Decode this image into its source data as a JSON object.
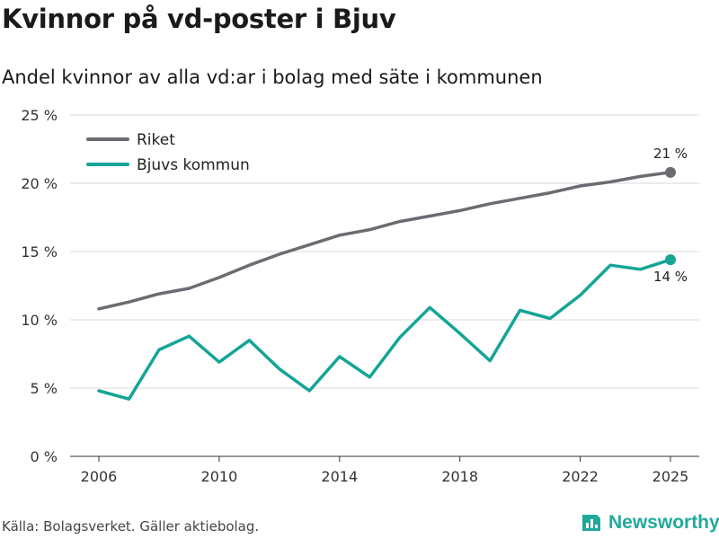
{
  "title": "Kvinnor på vd-poster i Bjuv",
  "subtitle": "Andel kvinnor av alla vd:ar i bolag med säte i kommunen",
  "source": "Källa: Bolagsverket. Gäller aktiebolag.",
  "brand": "Newsworthy",
  "colors": {
    "riket": "#6c6b72",
    "bjuv": "#13a596",
    "grid": "#d9d9d9",
    "brand": "#20a99b"
  },
  "chart_data": {
    "type": "line",
    "x": [
      2006,
      2007,
      2008,
      2009,
      2010,
      2011,
      2012,
      2013,
      2014,
      2015,
      2016,
      2017,
      2018,
      2019,
      2020,
      2021,
      2022,
      2023,
      2024,
      2025
    ],
    "x_ticks": [
      2006,
      2010,
      2014,
      2018,
      2022,
      2025
    ],
    "x_tick_labels": [
      "2006",
      "2010",
      "2014",
      "2018",
      "2022",
      "2025"
    ],
    "ylim": [
      0,
      25
    ],
    "y_ticks": [
      0,
      5,
      10,
      15,
      20,
      25
    ],
    "y_tick_labels": [
      "0 %",
      "5 %",
      "10 %",
      "15 %",
      "20 %",
      "25 %"
    ],
    "grid": true,
    "legend_position": "top-left",
    "series": [
      {
        "name": "Riket",
        "color": "#6c6b72",
        "values": [
          10.8,
          11.3,
          11.9,
          12.3,
          13.1,
          14.0,
          14.8,
          15.5,
          16.2,
          16.6,
          17.2,
          17.6,
          18.0,
          18.5,
          18.9,
          19.3,
          19.8,
          20.1,
          20.5,
          20.8
        ],
        "end_label": "21 %"
      },
      {
        "name": "Bjuvs kommun",
        "color": "#13a596",
        "values": [
          4.8,
          4.2,
          7.8,
          8.8,
          6.9,
          8.5,
          6.4,
          4.8,
          7.3,
          5.8,
          8.7,
          10.9,
          9.0,
          7.0,
          10.7,
          10.1,
          11.8,
          14.0,
          13.7,
          14.4
        ],
        "end_label": "14 %"
      }
    ]
  }
}
